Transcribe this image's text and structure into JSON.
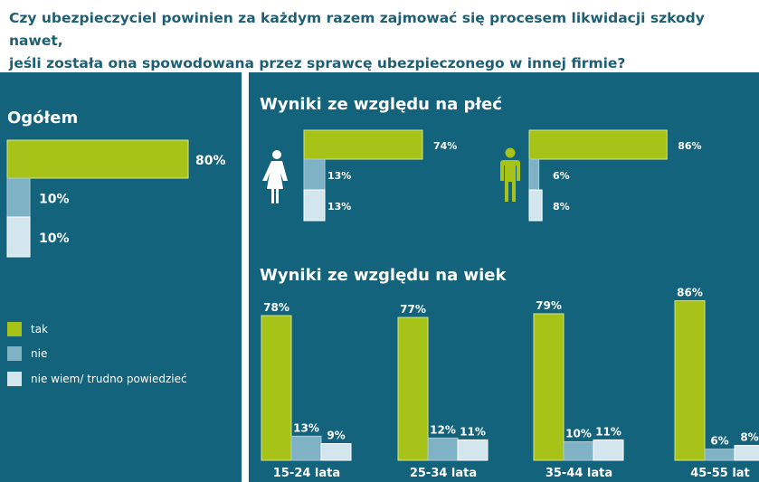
{
  "question": {
    "line1": "Czy ubezpieczyciel powinien za każdym razem zajmować się procesem likwidacji szkody nawet,",
    "line2": "jeśli została ona spowodowana przez sprawcę ubezpieczonego w innej firmie?"
  },
  "colors": {
    "tak": "#a7c317",
    "nie": "#7fb2c5",
    "nie_wiem": "#d3e6ee",
    "panel": "#13637c"
  },
  "legend": [
    "tak",
    "nie",
    "nie wiem/ trudno powiedzieć"
  ],
  "chart_data": [
    {
      "type": "bar",
      "orientation": "horizontal",
      "title": "Ogółem",
      "categories": [
        "tak",
        "nie",
        "nie wiem/ trudno powiedzieć"
      ],
      "values": [
        80,
        10,
        10
      ],
      "labels": [
        "80%",
        "10%",
        "10%"
      ]
    },
    {
      "type": "bar",
      "orientation": "horizontal",
      "title": "Wyniki ze względu na płeć",
      "groups": [
        {
          "name": "kobiety",
          "icon": "female-icon",
          "values": [
            74,
            13,
            13
          ],
          "labels": [
            "74%",
            "13%",
            "13%"
          ]
        },
        {
          "name": "mężczyźni",
          "icon": "male-icon",
          "values": [
            86,
            6,
            8
          ],
          "labels": [
            "86%",
            "6%",
            "8%"
          ]
        }
      ],
      "series_keys": [
        "tak",
        "nie",
        "nie wiem/ trudno powiedzieć"
      ]
    },
    {
      "type": "bar",
      "title": "Wyniki ze względu na wiek",
      "categories": [
        "15-24 lata",
        "25-34 lata",
        "35-44 lata",
        "45-55 lat"
      ],
      "series": [
        {
          "name": "tak",
          "values": [
            78,
            77,
            79,
            86
          ],
          "labels": [
            "78%",
            "77%",
            "79%",
            "86%"
          ]
        },
        {
          "name": "nie",
          "values": [
            13,
            12,
            10,
            6
          ],
          "labels": [
            "13%",
            "12%",
            "10%",
            "6%"
          ]
        },
        {
          "name": "nie wiem/ trudno powiedzieć",
          "values": [
            9,
            11,
            11,
            8
          ],
          "labels": [
            "9%",
            "11%",
            "11%",
            "8%"
          ]
        }
      ]
    }
  ]
}
